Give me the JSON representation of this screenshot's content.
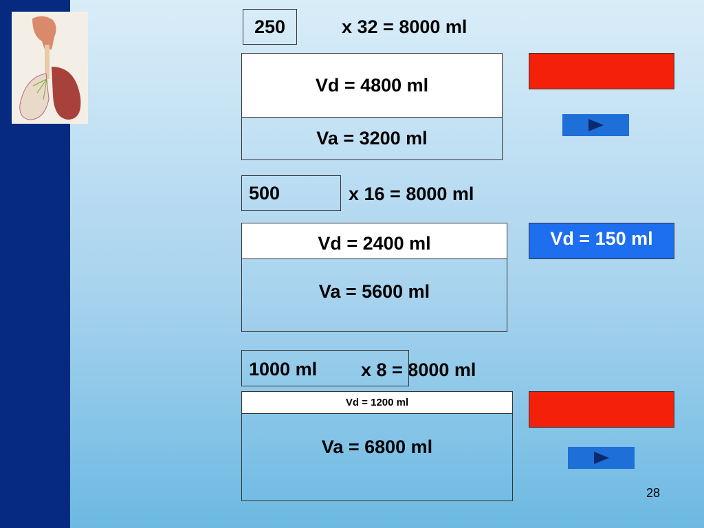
{
  "sections": [
    {
      "tidal": "250",
      "equation": "x 32 = 8000 ml",
      "dead_space": "Vd = 4800 ml",
      "alveolar": "Va = 3200 ml"
    },
    {
      "tidal": "500",
      "equation": "x 16 = 8000 ml",
      "dead_space": "Vd = 2400 ml",
      "alveolar": "Va = 5600 ml"
    },
    {
      "tidal": "1000 ml",
      "equation": "x 8 = 8000 ml",
      "dead_space": "Vd = 1200 ml",
      "alveolar": "Va = 6800 ml"
    }
  ],
  "note": "Vd = 150 ml",
  "page_number": "28"
}
